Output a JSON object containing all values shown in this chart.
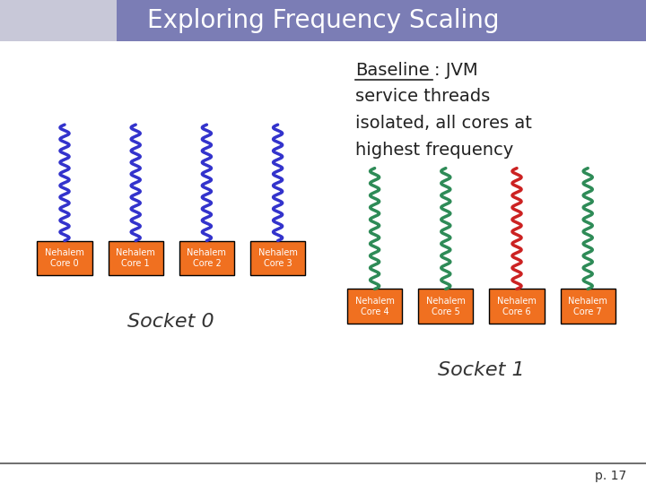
{
  "title": "Exploring Frequency Scaling",
  "title_bg_color": "#7B7DB5",
  "title_text_color": "#FFFFFF",
  "baseline_lines": [
    "service threads",
    "isolated, all cores at",
    "highest frequency"
  ],
  "socket0_label": "Socket 0",
  "socket1_label": "Socket 1",
  "page_number": "p. 17",
  "core_bg_color": "#F07020",
  "core_labels_s0": [
    "Nehalem\nCore 0",
    "Nehalem\nCore 1",
    "Nehalem\nCore 2",
    "Nehalem\nCore 3"
  ],
  "core_labels_s1": [
    "Nehalem\nCore 4",
    "Nehalem\nCore 5",
    "Nehalem\nCore 6",
    "Nehalem\nCore 7"
  ],
  "thread_color_s0": "#3333CC",
  "thread_colors_s1": [
    "#2E8B57",
    "#2E8B57",
    "#CC2222",
    "#2E8B57"
  ],
  "bg_color": "#FFFFFF",
  "footer_line_color": "#555555",
  "logo_bg_color": "#C8C8D8"
}
